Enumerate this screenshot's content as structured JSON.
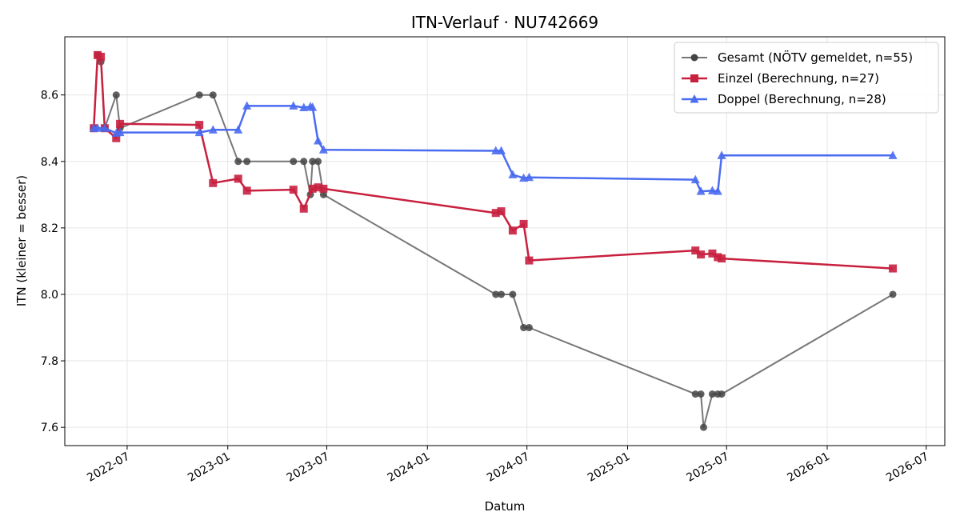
{
  "chart_data": {
    "type": "line",
    "title": "ITN-Verlauf · NU742669",
    "xlabel": "Datum",
    "ylabel": "ITN  (kleiner = besser)",
    "xlim": [
      "2022-03-09",
      "2026-08-04"
    ],
    "ylim": [
      7.545,
      8.775
    ],
    "x_ticks": [
      "2022-07-01",
      "2023-01-01",
      "2023-07-01",
      "2024-01-01",
      "2024-07-01",
      "2025-01-01",
      "2025-07-01",
      "2026-01-01",
      "2026-07-01"
    ],
    "x_tick_labels": [
      "2022-07",
      "2023-01",
      "2023-07",
      "2024-01",
      "2024-07",
      "2025-01",
      "2025-07",
      "2026-01",
      "2026-07"
    ],
    "y_ticks": [
      7.6,
      7.8,
      8.0,
      8.2,
      8.4,
      8.6
    ],
    "y_tick_labels": [
      "7.6",
      "7.8",
      "8.0",
      "8.2",
      "8.4",
      "8.6"
    ],
    "grid": true,
    "legend_position": "top-right",
    "series": [
      {
        "name": "Gesamt (NÖTV gemeldet, n=55)",
        "color": "#555555",
        "marker": "circle",
        "points": [
          [
            "2022-05-01",
            8.5
          ],
          [
            "2022-05-08",
            8.72
          ],
          [
            "2022-05-14",
            8.7
          ],
          [
            "2022-05-21",
            8.5
          ],
          [
            "2022-06-11",
            8.6
          ],
          [
            "2022-06-18",
            8.5
          ],
          [
            "2022-11-10",
            8.6
          ],
          [
            "2022-12-05",
            8.6
          ],
          [
            "2023-01-20",
            8.4
          ],
          [
            "2023-02-05",
            8.4
          ],
          [
            "2023-05-01",
            8.4
          ],
          [
            "2023-05-20",
            8.4
          ],
          [
            "2023-06-01",
            8.3
          ],
          [
            "2023-06-05",
            8.4
          ],
          [
            "2023-06-15",
            8.4
          ],
          [
            "2023-06-25",
            8.3
          ],
          [
            "2024-05-05",
            8.0
          ],
          [
            "2024-05-15",
            8.0
          ],
          [
            "2024-06-05",
            8.0
          ],
          [
            "2024-06-25",
            7.9
          ],
          [
            "2024-07-05",
            7.9
          ],
          [
            "2025-05-05",
            7.7
          ],
          [
            "2025-05-15",
            7.7
          ],
          [
            "2025-05-20",
            7.6
          ],
          [
            "2025-06-05",
            7.7
          ],
          [
            "2025-06-15",
            7.7
          ],
          [
            "2025-06-22",
            7.7
          ],
          [
            "2026-05-01",
            8.0
          ]
        ]
      },
      {
        "name": "Einzel (Berechnung, n=27)",
        "color": "#c8203f",
        "marker": "square",
        "points": [
          [
            "2022-05-01",
            8.5
          ],
          [
            "2022-05-08",
            8.72
          ],
          [
            "2022-05-14",
            8.715
          ],
          [
            "2022-05-21",
            8.5
          ],
          [
            "2022-06-11",
            8.47
          ],
          [
            "2022-06-18",
            8.513
          ],
          [
            "2022-11-10",
            8.51
          ],
          [
            "2022-12-05",
            8.335
          ],
          [
            "2023-01-20",
            8.348
          ],
          [
            "2023-02-05",
            8.312
          ],
          [
            "2023-05-01",
            8.315
          ],
          [
            "2023-05-20",
            8.258
          ],
          [
            "2023-06-05",
            8.318
          ],
          [
            "2023-06-15",
            8.322
          ],
          [
            "2023-06-25",
            8.318
          ],
          [
            "2024-05-05",
            8.245
          ],
          [
            "2024-05-15",
            8.25
          ],
          [
            "2024-06-05",
            8.192
          ],
          [
            "2024-06-25",
            8.212
          ],
          [
            "2024-07-05",
            8.102
          ],
          [
            "2025-05-05",
            8.132
          ],
          [
            "2025-05-15",
            8.12
          ],
          [
            "2025-06-05",
            8.123
          ],
          [
            "2025-06-15",
            8.112
          ],
          [
            "2025-06-22",
            8.108
          ],
          [
            "2026-05-01",
            8.078
          ]
        ]
      },
      {
        "name": "Doppel (Berechnung, n=28)",
        "color": "#4a6cf0",
        "marker": "triangle",
        "points": [
          [
            "2022-05-01",
            8.5
          ],
          [
            "2022-05-08",
            8.5
          ],
          [
            "2022-05-21",
            8.5
          ],
          [
            "2022-06-11",
            8.485
          ],
          [
            "2022-06-18",
            8.487
          ],
          [
            "2022-11-10",
            8.487
          ],
          [
            "2022-12-05",
            8.495
          ],
          [
            "2023-01-20",
            8.495
          ],
          [
            "2023-02-05",
            8.567
          ],
          [
            "2023-05-01",
            8.567
          ],
          [
            "2023-05-20",
            8.562
          ],
          [
            "2023-06-01",
            8.565
          ],
          [
            "2023-06-05",
            8.563
          ],
          [
            "2023-06-15",
            8.462
          ],
          [
            "2023-06-25",
            8.435
          ],
          [
            "2024-05-05",
            8.432
          ],
          [
            "2024-05-15",
            8.432
          ],
          [
            "2024-06-05",
            8.36
          ],
          [
            "2024-06-25",
            8.35
          ],
          [
            "2024-07-05",
            8.352
          ],
          [
            "2025-05-05",
            8.345
          ],
          [
            "2025-05-15",
            8.31
          ],
          [
            "2025-06-05",
            8.312
          ],
          [
            "2025-06-15",
            8.31
          ],
          [
            "2025-06-22",
            8.418
          ],
          [
            "2026-05-01",
            8.418
          ]
        ]
      }
    ]
  }
}
